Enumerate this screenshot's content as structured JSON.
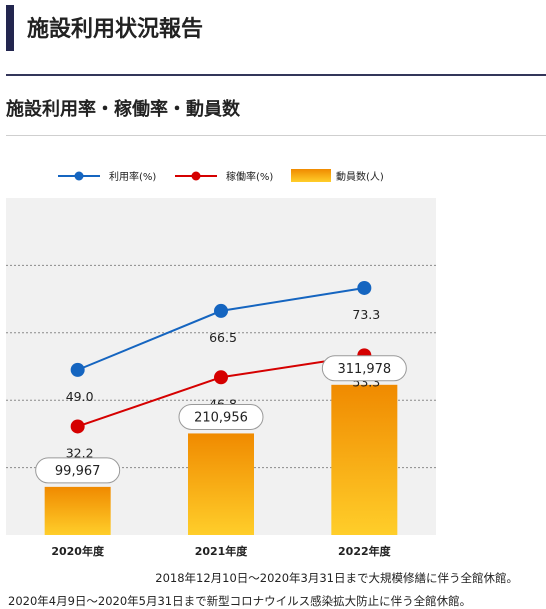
{
  "page_title": "施設利用状況報告",
  "section_title": "施設利用率・稼働率・動員数",
  "chart_data": {
    "type": "bar",
    "categories": [
      "2020年度",
      "2021年度",
      "2022年度"
    ],
    "series": [
      {
        "name": "利用率(%)",
        "kind": "line",
        "axis": "percent",
        "color": "#1565c0",
        "values": [
          49.0,
          66.5,
          73.3
        ],
        "labels": [
          "49.0",
          "66.5",
          "73.3"
        ]
      },
      {
        "name": "稼働率(%)",
        "kind": "line",
        "axis": "percent",
        "color": "#d50000",
        "values": [
          32.2,
          46.8,
          53.3
        ],
        "labels": [
          "32.2",
          "46.8",
          "53.3"
        ]
      },
      {
        "name": "動員数(人)",
        "kind": "bar",
        "axis": "people",
        "color": "#f7a21b",
        "values": [
          99967,
          210956,
          311978
        ],
        "labels": [
          "99,967",
          "210,956",
          "311,978"
        ]
      }
    ],
    "legend_position": "top",
    "grid": true,
    "percent_range": [
      0,
      100
    ],
    "people_range": [
      0,
      700000
    ]
  },
  "notes": [
    "2018年12月10日～2020年3月31日まで大規模修繕に伴う全館休館。",
    "2020年4月9日～2020年5月31日まで新型コロナウイルス感染拡大防止に伴う全館休館。"
  ]
}
